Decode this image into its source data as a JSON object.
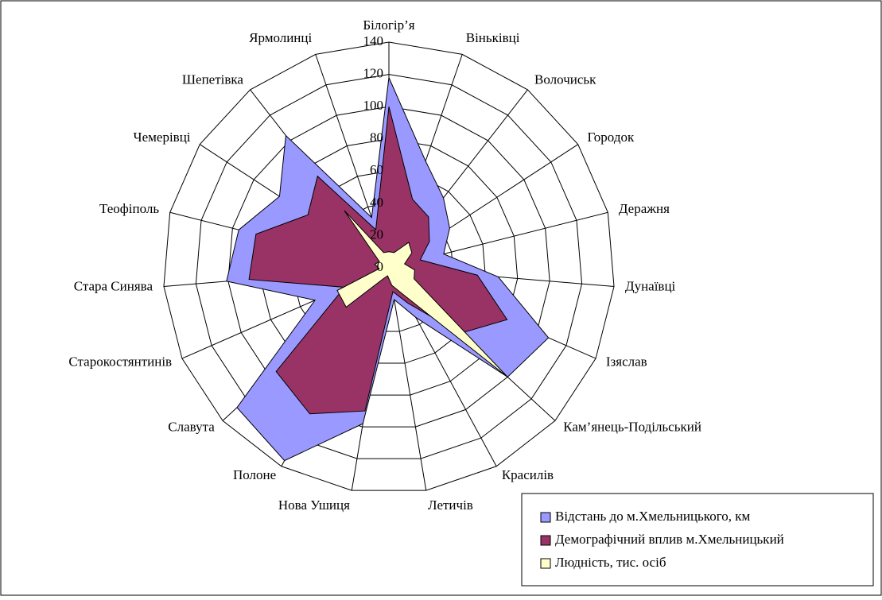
{
  "chart_data": {
    "type": "radar",
    "categories": [
      "Білогір’я",
      "Віньківці",
      "Волочиськ",
      "Городок",
      "Деражня",
      "Дунаївці",
      "Ізяслав",
      "Кам’янець-Подільський",
      "Красилів",
      "Летичів",
      "Нова Ушиця",
      "Полоне",
      "Славута",
      "Старокостянтинів",
      "Стара Синява",
      "Теофіполь",
      "Чемерівці",
      "Шепетівка",
      "Ярмолинці"
    ],
    "series": [
      {
        "name": "Відстань до м.Хмельницького, км",
        "color": "#9999ff",
        "values": [
          118,
          70,
          55,
          45,
          35,
          68,
          108,
          100,
          35,
          20,
          98,
          136,
          128,
          50,
          101,
          96,
          81,
          104,
          33
        ]
      },
      {
        "name": "Демографічний вплив м.Хмельницький",
        "color": "#993366",
        "values": [
          100,
          45,
          40,
          30,
          20,
          55,
          80,
          60,
          25,
          15,
          90,
          103,
          95,
          30,
          87,
          85,
          60,
          72,
          25
        ]
      },
      {
        "name": "Людність, тис. осіб",
        "color": "#ffffcc",
        "values": [
          10,
          10,
          20,
          17,
          10,
          16,
          17,
          100,
          19,
          11,
          5,
          8,
          36,
          35,
          6,
          9,
          7,
          45,
          10
        ]
      }
    ],
    "rlim": [
      0,
      140
    ],
    "rticks": [
      0,
      20,
      40,
      60,
      80,
      100,
      120,
      140
    ],
    "grid": true,
    "legend": "bottom-right"
  }
}
